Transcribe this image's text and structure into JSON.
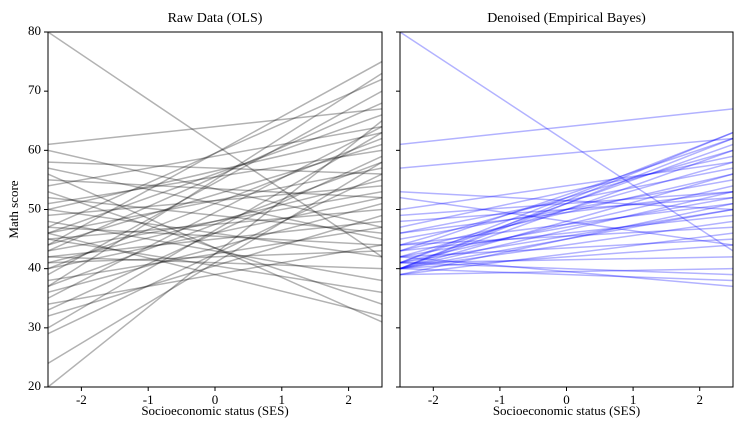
{
  "chart_data": [
    {
      "type": "line",
      "title": "Raw Data (OLS)",
      "xlabel": "Socioeconomic status (SES)",
      "ylabel": "Math score",
      "x": [
        -2.5,
        2.5
      ],
      "xlim": [
        -2.5,
        2.5
      ],
      "ylim": [
        20,
        80
      ],
      "xticks": [
        -2,
        -1,
        0,
        1,
        2
      ],
      "yticks": [
        20,
        30,
        40,
        50,
        60,
        70,
        80
      ],
      "color": "#000000",
      "alpha": 0.3,
      "series": [
        {
          "values": [
            80,
            42
          ]
        },
        {
          "values": [
            20,
            65
          ]
        },
        {
          "values": [
            24,
            58
          ]
        },
        {
          "values": [
            61,
            67
          ]
        },
        {
          "values": [
            56,
            31
          ]
        },
        {
          "values": [
            44,
            75
          ]
        },
        {
          "values": [
            37,
            73
          ]
        },
        {
          "values": [
            30,
            63
          ]
        },
        {
          "values": [
            29,
            56
          ]
        },
        {
          "values": [
            33,
            59
          ]
        },
        {
          "values": [
            35,
            64
          ]
        },
        {
          "values": [
            40,
            62
          ]
        },
        {
          "values": [
            41,
            55
          ]
        },
        {
          "values": [
            42,
            48
          ]
        },
        {
          "values": [
            43,
            53
          ]
        },
        {
          "values": [
            45,
            50
          ]
        },
        {
          "values": [
            46,
            57
          ]
        },
        {
          "values": [
            47,
            44
          ]
        },
        {
          "values": [
            48,
            38
          ]
        },
        {
          "values": [
            50,
            42
          ]
        },
        {
          "values": [
            51,
            60
          ]
        },
        {
          "values": [
            52,
            46
          ]
        },
        {
          "values": [
            53,
            34
          ]
        },
        {
          "values": [
            55,
            52
          ]
        },
        {
          "values": [
            57,
            45
          ]
        },
        {
          "values": [
            58,
            56
          ]
        },
        {
          "values": [
            38,
            47
          ]
        },
        {
          "values": [
            39,
            70
          ]
        },
        {
          "values": [
            36,
            51
          ]
        },
        {
          "values": [
            34,
            44
          ]
        },
        {
          "values": [
            44,
            61
          ]
        },
        {
          "values": [
            46,
            66
          ]
        },
        {
          "values": [
            49,
            54
          ]
        },
        {
          "values": [
            42,
            40
          ]
        },
        {
          "values": [
            41,
            43
          ]
        },
        {
          "values": [
            45,
            36
          ]
        },
        {
          "values": [
            37,
            58
          ]
        },
        {
          "values": [
            50,
            63
          ]
        },
        {
          "values": [
            47,
            72
          ]
        },
        {
          "values": [
            32,
            49
          ]
        },
        {
          "values": [
            43,
            68
          ]
        },
        {
          "values": [
            54,
            64
          ]
        },
        {
          "values": [
            40,
            52
          ]
        },
        {
          "values": [
            46,
            32
          ]
        },
        {
          "values": [
            60,
            47
          ]
        }
      ]
    },
    {
      "type": "line",
      "title": "Denoised (Empirical Bayes)",
      "xlabel": "Socioeconomic status (SES)",
      "x": [
        -2.5,
        2.5
      ],
      "xlim": [
        -2.5,
        2.5
      ],
      "ylim": [
        20,
        80
      ],
      "xticks": [
        -2,
        -1,
        0,
        1,
        2
      ],
      "yticks": [
        20,
        30,
        40,
        50,
        60,
        70,
        80
      ],
      "color": "#0000ff",
      "alpha": 0.3,
      "series": [
        {
          "values": [
            80,
            43
          ]
        },
        {
          "values": [
            61,
            67
          ]
        },
        {
          "values": [
            57,
            62
          ]
        },
        {
          "values": [
            40,
            62
          ]
        },
        {
          "values": [
            40,
            63
          ]
        },
        {
          "values": [
            41,
            61
          ]
        },
        {
          "values": [
            40,
            60
          ]
        },
        {
          "values": [
            42,
            58
          ]
        },
        {
          "values": [
            40,
            53
          ]
        },
        {
          "values": [
            41,
            54
          ]
        },
        {
          "values": [
            41,
            50
          ]
        },
        {
          "values": [
            42,
            52
          ]
        },
        {
          "values": [
            43,
            56
          ]
        },
        {
          "values": [
            40,
            48
          ]
        },
        {
          "values": [
            39,
            46
          ]
        },
        {
          "values": [
            39,
            40
          ]
        },
        {
          "values": [
            40,
            38
          ]
        },
        {
          "values": [
            41,
            42
          ]
        },
        {
          "values": [
            42,
            45
          ]
        },
        {
          "values": [
            43,
            49
          ]
        },
        {
          "values": [
            44,
            51
          ]
        },
        {
          "values": [
            45,
            55
          ]
        },
        {
          "values": [
            46,
            57
          ]
        },
        {
          "values": [
            47,
            59
          ]
        },
        {
          "values": [
            48,
            52
          ]
        },
        {
          "values": [
            50,
            58
          ]
        },
        {
          "values": [
            53,
            50
          ]
        },
        {
          "values": [
            52,
            44
          ]
        },
        {
          "values": [
            49,
            53
          ]
        },
        {
          "values": [
            44,
            47
          ]
        },
        {
          "values": [
            40,
            56
          ]
        },
        {
          "values": [
            39,
            51
          ]
        },
        {
          "values": [
            40,
            44
          ]
        },
        {
          "values": [
            41,
            39
          ]
        },
        {
          "values": [
            42,
            37
          ]
        },
        {
          "values": [
            43,
            62
          ]
        },
        {
          "values": [
            41,
            63
          ]
        },
        {
          "values": [
            44,
            60
          ]
        },
        {
          "values": [
            46,
            53
          ]
        },
        {
          "values": [
            40,
            50
          ]
        }
      ]
    }
  ]
}
